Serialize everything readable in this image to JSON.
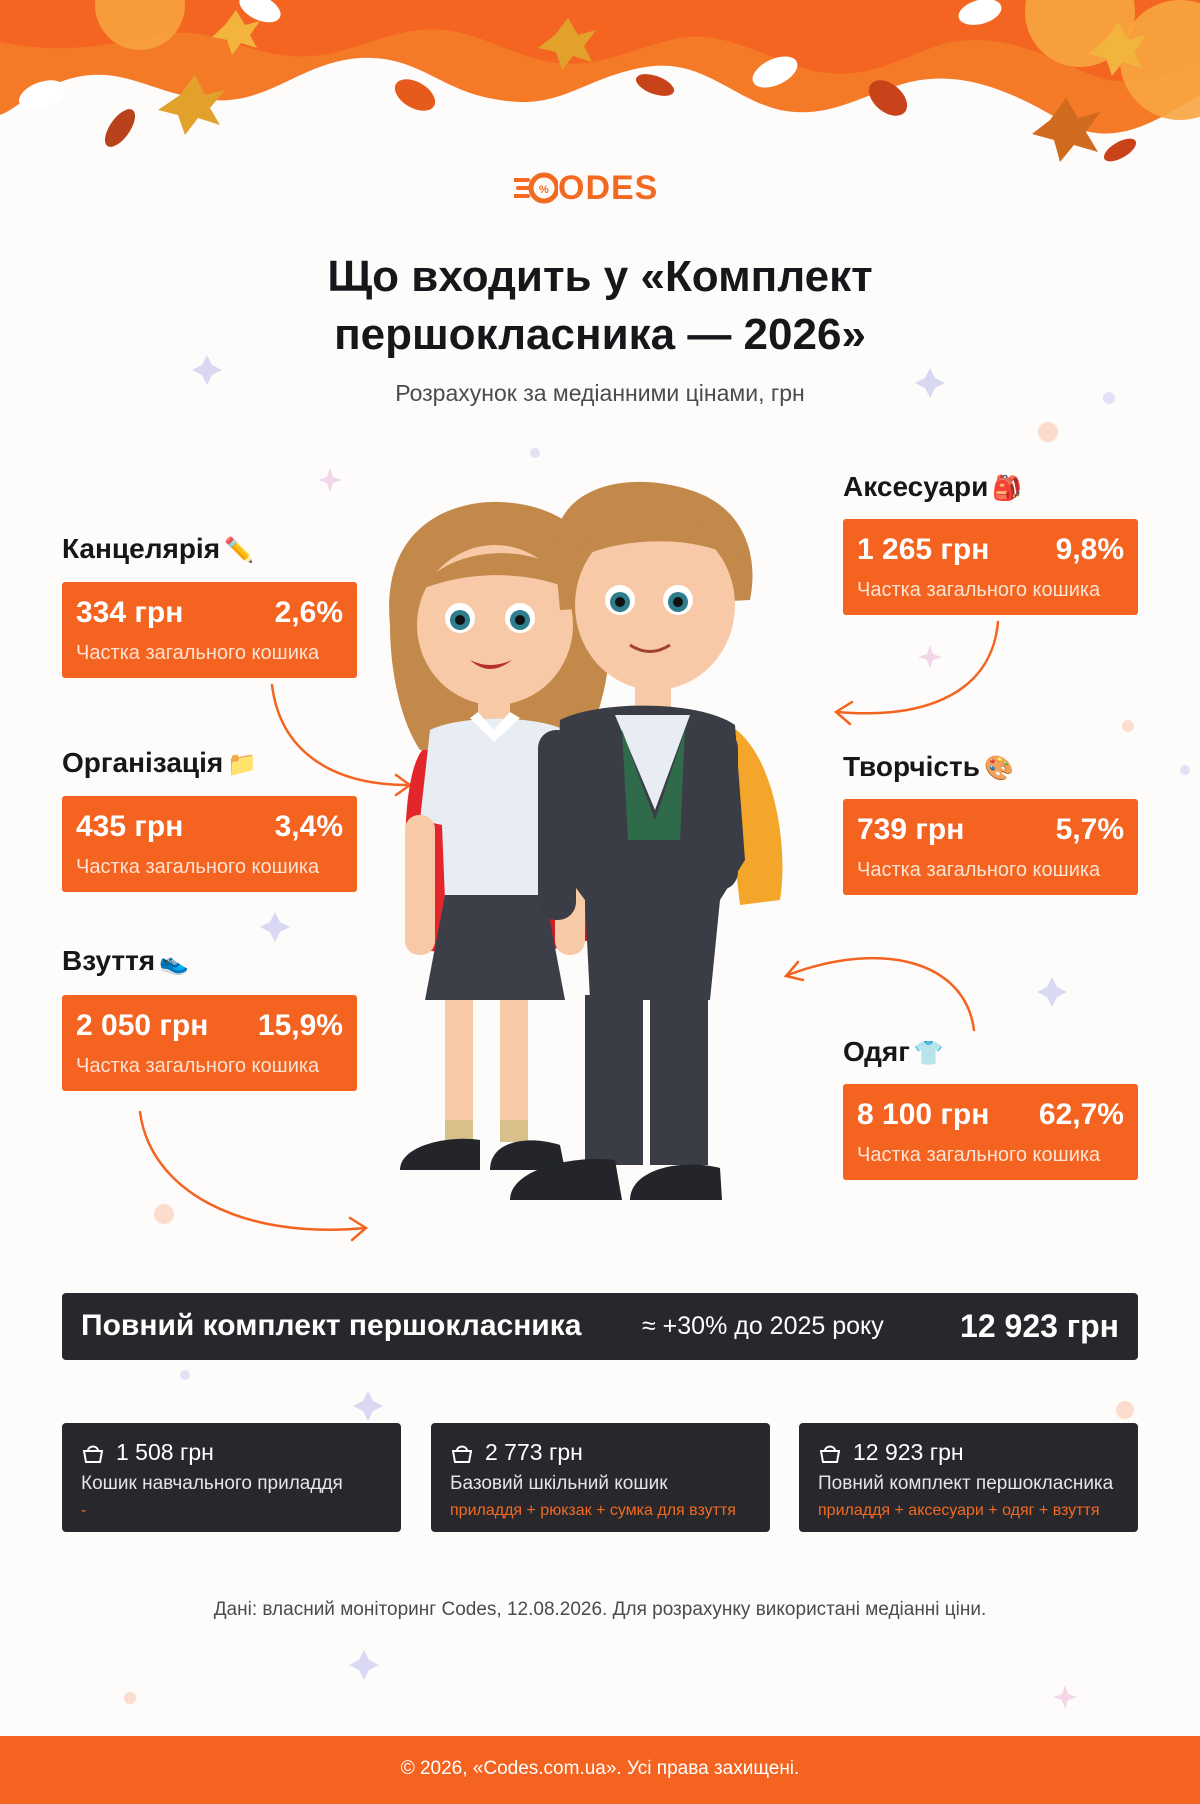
{
  "brand": {
    "logo_text": "ODES",
    "accent": "#f4631f",
    "dark": "#27272c"
  },
  "title_line1": "Що входить у «Комплект",
  "title_line2": "першокласника — 2026»",
  "subtitle": "Розрахунок за медіанними цінами, грн",
  "categories": [
    {
      "name": "Канцелярія",
      "icon": "pencil-icon",
      "emoji": "✏️",
      "price": "334 грн",
      "percent": "2,6%",
      "share_label": "Частка загального кошика"
    },
    {
      "name": "Організація",
      "icon": "folder-icon",
      "emoji": "📁",
      "price": "435 грн",
      "percent": "3,4%",
      "share_label": "Частка загального кошика"
    },
    {
      "name": "Взуття",
      "icon": "sneaker-icon",
      "emoji": "👟",
      "price": "2 050 грн",
      "percent": "15,9%",
      "share_label": "Частка загального кошика"
    },
    {
      "name": "Аксесуари",
      "icon": "backpack-icon",
      "emoji": "🎒",
      "price": "1 265 грн",
      "percent": "9,8%",
      "share_label": "Частка загального кошика"
    },
    {
      "name": "Творчість",
      "icon": "palette-icon",
      "emoji": "🎨",
      "price": "739 грн",
      "percent": "5,7%",
      "share_label": "Частка загального кошика"
    },
    {
      "name": "Одяг",
      "icon": "shirt-icon",
      "emoji": "👕",
      "price": "8 100 грн",
      "percent": "62,7%",
      "share_label": "Частка загального кошика"
    }
  ],
  "total": {
    "label": "Повний комплект першокласника",
    "growth": "≈ +30% до 2025 року",
    "sum": "12 923 грн"
  },
  "baskets": [
    {
      "sum": "1 508 грн",
      "name": "Кошик навчального приладдя",
      "note": "-"
    },
    {
      "sum": "2 773 грн",
      "name": "Базовий шкільний кошик",
      "note": "приладдя + рюкзак + сумка для взуття"
    },
    {
      "sum": "12 923 грн",
      "name": "Повний комплект першокласника",
      "note": "приладдя + аксесуари + одяг + взуття"
    }
  ],
  "source": "Дані: власний моніторинг Codes, 12.08.2026. Для розрахунку використані медіанні ціни.",
  "footer": "© 2026, «Codes.com.ua». Усі права захищені."
}
